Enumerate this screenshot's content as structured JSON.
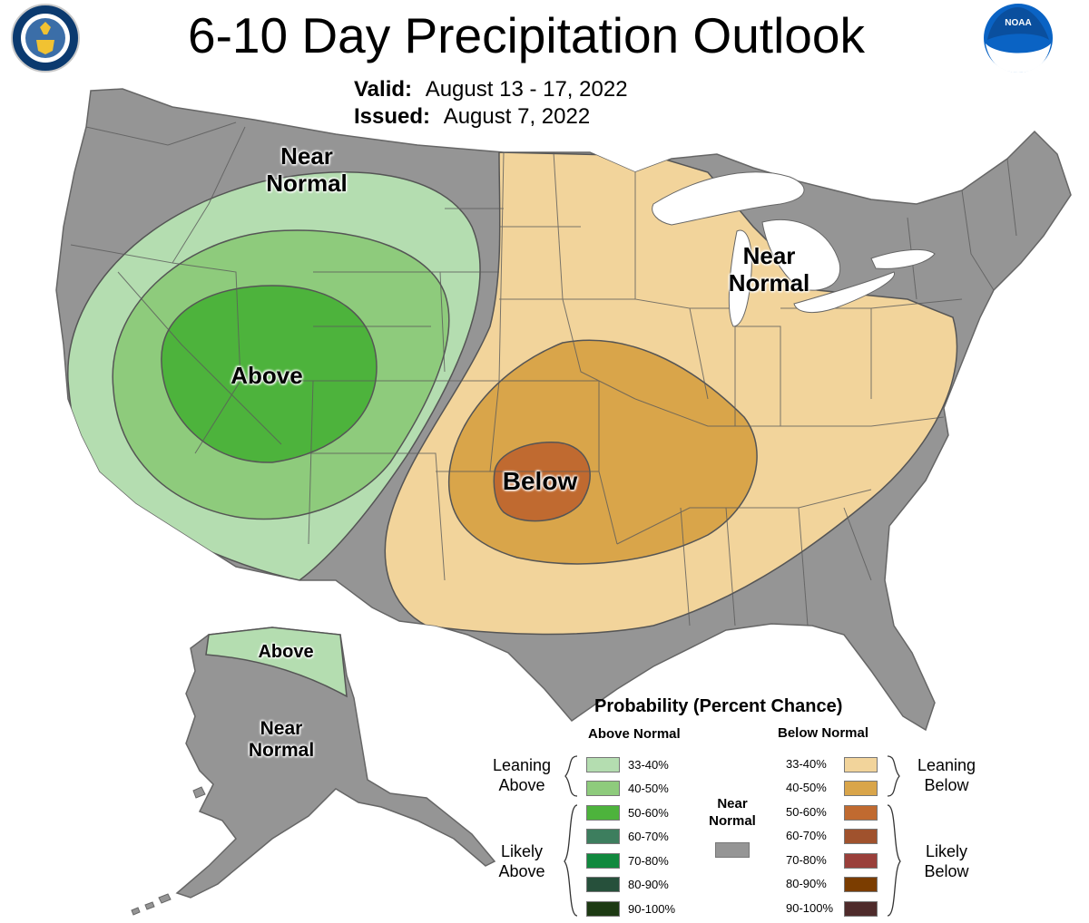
{
  "header": {
    "title": "6-10 Day Precipitation Outlook",
    "valid_label": "Valid:",
    "valid_value": "August 13 - 17, 2022",
    "issued_label": "Issued:",
    "issued_value": "August 7, 2022"
  },
  "logos": {
    "doc_seal": {
      "icon": "department-of-commerce-seal",
      "text": "DEPARTMENT OF COMMERCE · UNITED STATES OF AMERICA"
    },
    "noaa": {
      "icon": "noaa-logo",
      "text": "NOAA"
    }
  },
  "map_labels": {
    "west_near_normal": "Near\nNormal",
    "west_above": "Above",
    "central_below": "Below",
    "great_lakes_near_normal": "Near\nNormal",
    "alaska_above": "Above",
    "alaska_near_normal": "Near\nNormal"
  },
  "colors": {
    "near_normal": "#959595",
    "above_33_40": "#b4ddb0",
    "above_40_50": "#8ecb7c",
    "above_50_60": "#4db33c",
    "below_33_40": "#f2d49b",
    "below_40_50": "#d9a54a",
    "below_50_60": "#c06a30",
    "outline": "#555555"
  },
  "legend": {
    "title": "Probability (Percent Chance)",
    "above_header": "Above Normal",
    "below_header": "Below Normal",
    "near_normal_label": "Near\nNormal",
    "near_normal_color": "#959595",
    "leaning_above": "Leaning\nAbove",
    "likely_above": "Likely\nAbove",
    "leaning_below": "Leaning\nBelow",
    "likely_below": "Likely\nBelow",
    "above": [
      {
        "label": "33-40%",
        "color": "#b4ddb0"
      },
      {
        "label": "40-50%",
        "color": "#8ecb7c"
      },
      {
        "label": "50-60%",
        "color": "#4db33c"
      },
      {
        "label": "60-70%",
        "color": "#3d7e5e"
      },
      {
        "label": "70-80%",
        "color": "#11893e"
      },
      {
        "label": "80-90%",
        "color": "#26503b"
      },
      {
        "label": "90-100%",
        "color": "#1d3a13"
      }
    ],
    "below": [
      {
        "label": "33-40%",
        "color": "#f2d49b"
      },
      {
        "label": "40-50%",
        "color": "#d9a54a"
      },
      {
        "label": "50-60%",
        "color": "#c06a30"
      },
      {
        "label": "60-70%",
        "color": "#a0522d"
      },
      {
        "label": "70-80%",
        "color": "#9a3f3a"
      },
      {
        "label": "80-90%",
        "color": "#7b3d00"
      },
      {
        "label": "90-100%",
        "color": "#4f2b2b"
      }
    ]
  }
}
